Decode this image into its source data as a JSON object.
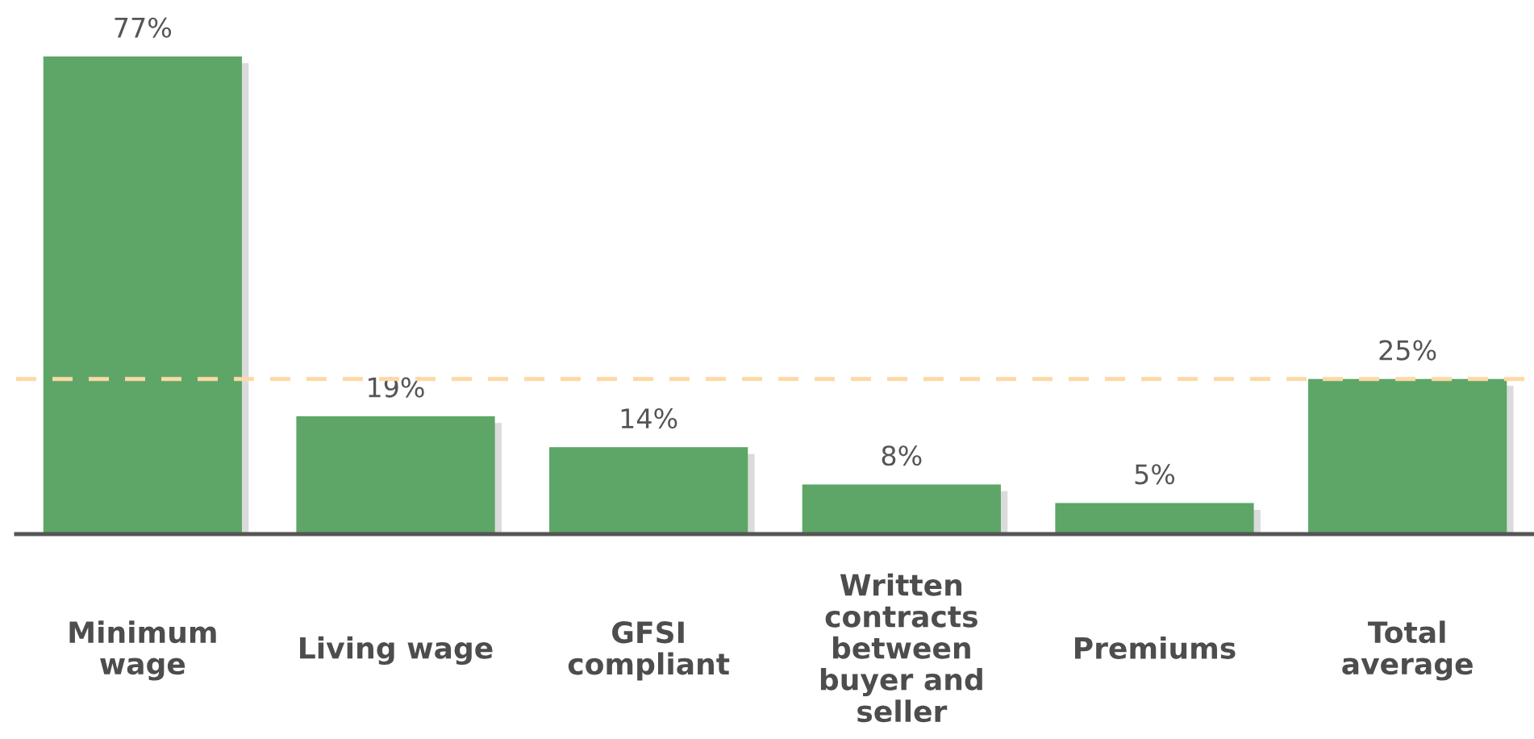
{
  "chart_data": {
    "type": "bar",
    "categories": [
      "Minimum\nwage",
      "Living wage",
      "GFSI\ncompliant",
      "Written\ncontracts\nbetween\nbuyer and\nseller",
      "Premiums",
      "Total\naverage"
    ],
    "values": [
      77,
      19,
      14,
      8,
      5,
      25
    ],
    "color": "#5da667",
    "value_labels": [
      "77%",
      "19%",
      "14%",
      "8%",
      "5%",
      "25%"
    ],
    "ref_lines": [
      {
        "axis": "y",
        "value": 25,
        "color": "#fdd9a6",
        "line_style": "dashed"
      }
    ]
  }
}
